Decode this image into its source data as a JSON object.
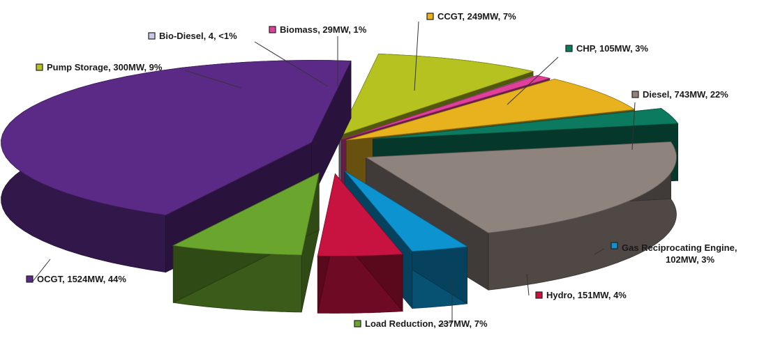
{
  "chart_data": {
    "type": "pie",
    "style": "3d-exploded",
    "title": "",
    "unit": "MW",
    "legend": "none",
    "slices": [
      {
        "name": "OCGT",
        "value": 1524,
        "percent": 44,
        "label": "OCGT, 1524MW, 44%",
        "color": "#5b2a86"
      },
      {
        "name": "Pump Storage",
        "value": 300,
        "percent": 9,
        "label": "Pump Storage, 300MW, 9%",
        "color": "#b5c21f"
      },
      {
        "name": "Bio-Diesel",
        "value": 4,
        "percent": "<1",
        "label": "Bio-Diesel, 4, <1%",
        "color": "#c8c8e8"
      },
      {
        "name": "Biomass",
        "value": 29,
        "percent": 1,
        "label": "Biomass, 29MW, 1%",
        "color": "#e0409a"
      },
      {
        "name": "CCGT",
        "value": 249,
        "percent": 7,
        "label": "CCGT, 249MW, 7%",
        "color": "#e8b21e"
      },
      {
        "name": "CHP",
        "value": 105,
        "percent": 3,
        "label": "CHP, 105MW, 3%",
        "color": "#0b7a5e"
      },
      {
        "name": "Diesel",
        "value": 743,
        "percent": 22,
        "label": "Diesel, 743MW, 22%",
        "color": "#8f837d"
      },
      {
        "name": "Gas Reciprocating Engine",
        "value": 102,
        "percent": 3,
        "label": [
          "Gas Reciprocating Engine,",
          "102MW, 3%"
        ],
        "color": "#0d93cf"
      },
      {
        "name": "Hydro",
        "value": 151,
        "percent": 4,
        "label": "Hydro, 151MW, 4%",
        "color": "#c8123f"
      },
      {
        "name": "Load Reduction",
        "value": 237,
        "percent": 7,
        "label": "Load Reduction, 237MW, 7%",
        "color": "#6aa52e"
      }
    ]
  }
}
